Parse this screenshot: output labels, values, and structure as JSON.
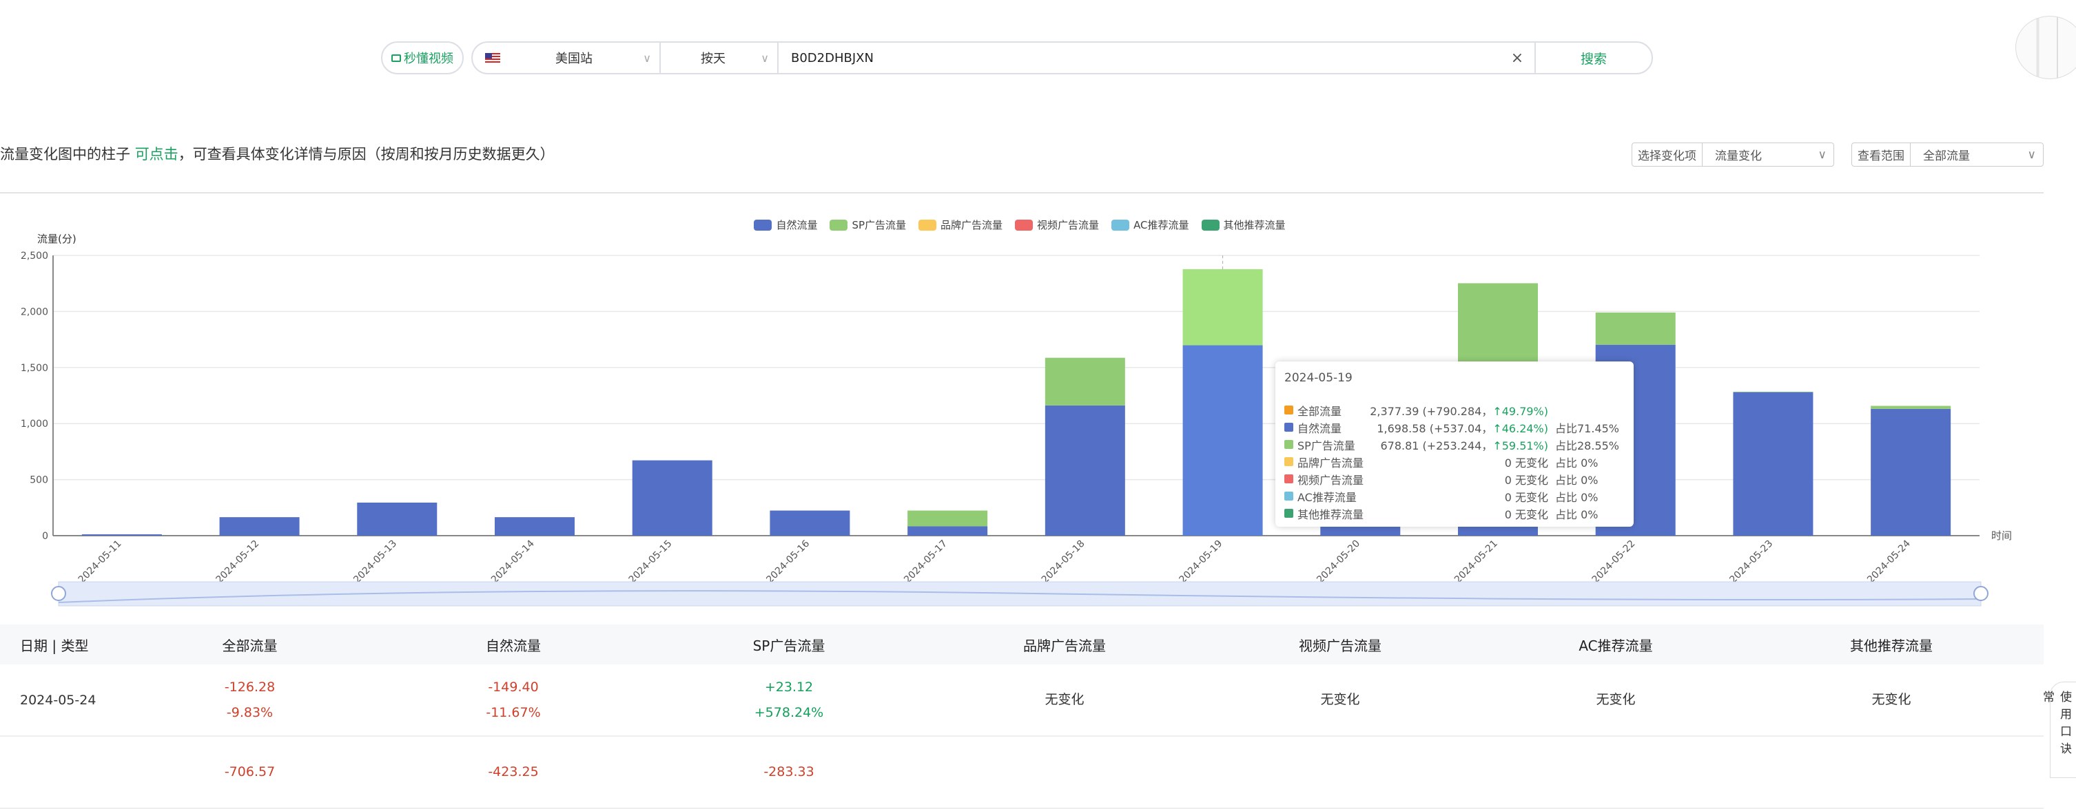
{
  "toolbar": {
    "video_button": "秒懂视频",
    "site": "美国站",
    "granularity": "按天",
    "asin": "B0D2DHBJXN",
    "search_button": "搜索",
    "clear_icon": "close-icon"
  },
  "notice": {
    "pre": "流量变化图中的柱子 ",
    "link": "可点击",
    "post": "，可查看具体变化详情与原因（按周和按月历史数据更久）"
  },
  "filters": [
    {
      "label": "选择变化项",
      "value": "流量变化"
    },
    {
      "label": "查看范围",
      "value": "全部流量"
    }
  ],
  "colors": {
    "accent": "#1aa260",
    "natural": "#5470c6",
    "sp": "#91cc75",
    "brand": "#fac858",
    "video": "#ee6666",
    "ac": "#73c0de",
    "other": "#3ba272",
    "total": "#f39c1f"
  },
  "chart_data": {
    "type": "bar",
    "stacked": true,
    "ylabel": "流量(分)",
    "xlabel": "时间",
    "ylim": [
      0,
      2500
    ],
    "yticks": [
      "0",
      "500",
      "1,000",
      "1,500",
      "2,000",
      "2,500"
    ],
    "grid": true,
    "legend_position": "top",
    "categories": [
      "2024-05-11",
      "2024-05-12",
      "2024-05-13",
      "2024-05-14",
      "2024-05-15",
      "2024-05-16",
      "2024-05-17",
      "2024-05-18",
      "2024-05-19",
      "2024-05-20",
      "2024-05-21",
      "2024-05-22",
      "2024-05-23",
      "2024-05-24"
    ],
    "series": [
      {
        "name": "自然流量",
        "values": [
          12,
          165,
          295,
          165,
          672,
          224,
          83,
          1161.54,
          1698.58,
          943,
          1368,
          1703.4,
          1280.2,
          1130.8
        ]
      },
      {
        "name": "SP广告流量",
        "values": [
          0,
          0,
          0,
          0,
          0,
          0,
          141,
          425.57,
          678.81,
          0,
          884,
          287.3,
          4,
          27.12
        ]
      },
      {
        "name": "品牌广告流量",
        "values": [
          0,
          0,
          0,
          0,
          0,
          0,
          0,
          0,
          0,
          0,
          0,
          0,
          0,
          0
        ]
      },
      {
        "name": "视频广告流量",
        "values": [
          0,
          0,
          0,
          0,
          0,
          0,
          0,
          0,
          0,
          0,
          0,
          0,
          0,
          0
        ]
      },
      {
        "name": "AC推荐流量",
        "values": [
          0,
          0,
          0,
          0,
          0,
          0,
          0,
          0,
          0,
          0,
          0,
          0,
          0,
          0
        ]
      },
      {
        "name": "其他推荐流量",
        "values": [
          0,
          0,
          0,
          0,
          0,
          0,
          0,
          0,
          0,
          0,
          0,
          0,
          0,
          0
        ]
      }
    ],
    "highlighted": "2024-05-19"
  },
  "tooltip": {
    "date": "2024-05-19",
    "rows": [
      {
        "name": "全部流量",
        "value": "2,377.39 (+790.284，",
        "pct": "↑49.79%)",
        "share": "",
        "color": "#f39c1f"
      },
      {
        "name": "自然流量",
        "value": "1,698.58 (+537.04，",
        "pct": "↑46.24%)",
        "share": "占比71.45%",
        "color": "#5470c6"
      },
      {
        "name": "SP广告流量",
        "value": "678.81 (+253.244，",
        "pct": "↑59.51%)",
        "share": "占比28.55%",
        "color": "#91cc75"
      },
      {
        "name": "品牌广告流量",
        "value": "0 无变化",
        "pct": "",
        "share": "占比 0%",
        "color": "#fac858"
      },
      {
        "name": "视频广告流量",
        "value": "0 无变化",
        "pct": "",
        "share": "占比 0%",
        "color": "#ee6666"
      },
      {
        "name": "AC推荐流量",
        "value": "0 无变化",
        "pct": "",
        "share": "占比 0%",
        "color": "#73c0de"
      },
      {
        "name": "其他推荐流量",
        "value": "0 无变化",
        "pct": "",
        "share": "占比 0%",
        "color": "#3ba272"
      }
    ]
  },
  "table": {
    "headers": [
      "日期 | 类型",
      "全部流量",
      "自然流量",
      "SP广告流量",
      "品牌广告流量",
      "视频广告流量",
      "AC推荐流量",
      "其他推荐流量"
    ],
    "rows": [
      {
        "date": "2024-05-24",
        "cells": [
          [
            "-126.28",
            "-9.83%"
          ],
          [
            "-149.40",
            "-11.67%"
          ],
          [
            "+23.12",
            "+578.24%"
          ],
          [
            "无变化"
          ],
          [
            "无变化"
          ],
          [
            "无变化"
          ],
          [
            "无变化"
          ]
        ]
      },
      {
        "date": "",
        "cells": [
          [
            "-706.57"
          ],
          [
            "-423.25"
          ],
          [
            "-283.33"
          ],
          [
            ""
          ],
          [
            ""
          ],
          [
            ""
          ],
          [
            ""
          ]
        ]
      }
    ]
  },
  "side_widget": "使用口诀 常"
}
